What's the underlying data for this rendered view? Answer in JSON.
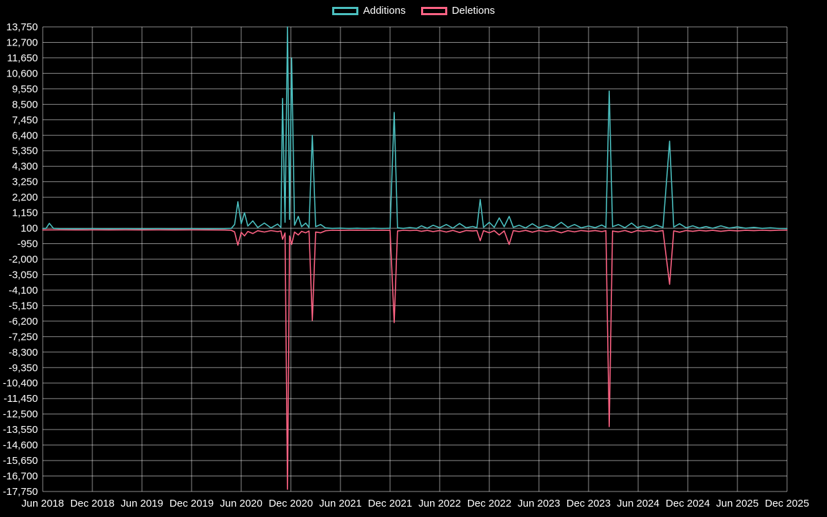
{
  "chart_data": {
    "type": "line",
    "title": "",
    "background_color": "#000000",
    "grid_color": "rgba(255,255,255,0.55)",
    "text_color": "#ffffff",
    "legend": {
      "position": "top",
      "items": [
        {
          "label": "Additions",
          "color": "#4bc0c0"
        },
        {
          "label": "Deletions",
          "color": "#ff6384"
        }
      ]
    },
    "x_axis": {
      "unit": "months since Jun 2018",
      "min": 0,
      "max": 90,
      "tick_positions": [
        0,
        6,
        12,
        18,
        24,
        30,
        36,
        42,
        48,
        54,
        60,
        66,
        72,
        78,
        84,
        90
      ],
      "tick_labels": [
        "Jun 2018",
        "Dec 2018",
        "Jun 2019",
        "Dec 2019",
        "Jun 2020",
        "Dec 2020",
        "Jun 2021",
        "Dec 2021",
        "Jun 2022",
        "Dec 2022",
        "Jun 2023",
        "Dec 2023",
        "Jun 2024",
        "Dec 2024",
        "Jun 2025",
        "Dec 2025"
      ],
      "grid": true
    },
    "y_axis": {
      "min": -17750,
      "max": 13750,
      "step": 1050,
      "grid": true
    },
    "series": [
      {
        "name": "Additions",
        "color": "#4bc0c0",
        "points": [
          [
            0,
            80
          ],
          [
            0.4,
            90
          ],
          [
            0.8,
            430
          ],
          [
            1.3,
            90
          ],
          [
            2,
            70
          ],
          [
            4,
            60
          ],
          [
            6,
            70
          ],
          [
            8,
            60
          ],
          [
            10,
            70
          ],
          [
            12,
            60
          ],
          [
            14,
            70
          ],
          [
            16,
            60
          ],
          [
            18,
            70
          ],
          [
            20,
            60
          ],
          [
            22,
            70
          ],
          [
            22.8,
            90
          ],
          [
            23.2,
            350
          ],
          [
            23.6,
            1900
          ],
          [
            24,
            400
          ],
          [
            24.4,
            1150
          ],
          [
            24.8,
            250
          ],
          [
            25.4,
            600
          ],
          [
            26,
            150
          ],
          [
            26.8,
            450
          ],
          [
            27.6,
            120
          ],
          [
            28.4,
            380
          ],
          [
            28.8,
            150
          ],
          [
            29,
            8900
          ],
          [
            29.3,
            500
          ],
          [
            29.6,
            13750
          ],
          [
            29.85,
            700
          ],
          [
            30.1,
            11650
          ],
          [
            30.45,
            300
          ],
          [
            30.9,
            900
          ],
          [
            31.3,
            200
          ],
          [
            31.8,
            450
          ],
          [
            32.2,
            150
          ],
          [
            32.6,
            6400
          ],
          [
            33,
            200
          ],
          [
            33.6,
            350
          ],
          [
            34.2,
            120
          ],
          [
            35,
            90
          ],
          [
            36,
            110
          ],
          [
            37,
            80
          ],
          [
            38,
            100
          ],
          [
            39,
            80
          ],
          [
            40,
            100
          ],
          [
            41,
            80
          ],
          [
            42,
            100
          ],
          [
            42.5,
            7950
          ],
          [
            42.9,
            130
          ],
          [
            43.6,
            90
          ],
          [
            44.4,
            150
          ],
          [
            45.2,
            90
          ],
          [
            45.8,
            260
          ],
          [
            46.5,
            100
          ],
          [
            47.2,
            300
          ],
          [
            48,
            130
          ],
          [
            48.8,
            350
          ],
          [
            49.6,
            110
          ],
          [
            50.4,
            420
          ],
          [
            51.2,
            130
          ],
          [
            52,
            220
          ],
          [
            52.5,
            130
          ],
          [
            52.9,
            2050
          ],
          [
            53.3,
            160
          ],
          [
            54,
            500
          ],
          [
            54.6,
            160
          ],
          [
            55.2,
            800
          ],
          [
            55.8,
            200
          ],
          [
            56.4,
            900
          ],
          [
            56.9,
            160
          ],
          [
            57.6,
            300
          ],
          [
            58.4,
            120
          ],
          [
            59.2,
            400
          ],
          [
            60,
            130
          ],
          [
            60.9,
            300
          ],
          [
            61.8,
            140
          ],
          [
            62.7,
            500
          ],
          [
            63.5,
            160
          ],
          [
            64.3,
            350
          ],
          [
            65.1,
            130
          ],
          [
            66,
            250
          ],
          [
            66.8,
            140
          ],
          [
            67.6,
            320
          ],
          [
            68.1,
            160
          ],
          [
            68.5,
            9400
          ],
          [
            68.9,
            200
          ],
          [
            69.6,
            350
          ],
          [
            70.4,
            130
          ],
          [
            71.2,
            450
          ],
          [
            71.9,
            140
          ],
          [
            72.6,
            260
          ],
          [
            73.4,
            130
          ],
          [
            74.2,
            320
          ],
          [
            75,
            150
          ],
          [
            75.8,
            6000
          ],
          [
            76.3,
            180
          ],
          [
            77,
            400
          ],
          [
            77.8,
            130
          ],
          [
            78.6,
            260
          ],
          [
            79.4,
            110
          ],
          [
            80.2,
            210
          ],
          [
            81,
            100
          ],
          [
            82,
            260
          ],
          [
            83,
            110
          ],
          [
            84,
            190
          ],
          [
            85,
            100
          ],
          [
            86,
            160
          ],
          [
            87,
            90
          ],
          [
            88,
            130
          ],
          [
            89,
            80
          ],
          [
            90,
            70
          ]
        ]
      },
      {
        "name": "Deletions",
        "color": "#ff6384",
        "points": [
          [
            0,
            -20
          ],
          [
            2,
            -15
          ],
          [
            4,
            -20
          ],
          [
            6,
            -15
          ],
          [
            8,
            -20
          ],
          [
            10,
            -15
          ],
          [
            12,
            -20
          ],
          [
            14,
            -15
          ],
          [
            16,
            -20
          ],
          [
            18,
            -15
          ],
          [
            20,
            -20
          ],
          [
            22,
            -25
          ],
          [
            22.8,
            -40
          ],
          [
            23.2,
            -150
          ],
          [
            23.6,
            -1050
          ],
          [
            24,
            -180
          ],
          [
            24.4,
            -420
          ],
          [
            24.8,
            -120
          ],
          [
            25.4,
            -260
          ],
          [
            26,
            -70
          ],
          [
            26.8,
            -160
          ],
          [
            27.6,
            -60
          ],
          [
            28.4,
            -130
          ],
          [
            28.8,
            -90
          ],
          [
            29,
            -650
          ],
          [
            29.3,
            -220
          ],
          [
            29.6,
            -17600
          ],
          [
            29.85,
            -420
          ],
          [
            30.1,
            -1000
          ],
          [
            30.45,
            -160
          ],
          [
            30.9,
            -360
          ],
          [
            31.3,
            -110
          ],
          [
            31.8,
            -210
          ],
          [
            32.2,
            -90
          ],
          [
            32.6,
            -6150
          ],
          [
            33,
            -160
          ],
          [
            33.6,
            -210
          ],
          [
            34.2,
            -70
          ],
          [
            35,
            -35
          ],
          [
            36,
            -45
          ],
          [
            38,
            -30
          ],
          [
            40,
            -40
          ],
          [
            42,
            -35
          ],
          [
            42.5,
            -6300
          ],
          [
            42.9,
            -90
          ],
          [
            43.6,
            -35
          ],
          [
            44.4,
            -60
          ],
          [
            45.2,
            -35
          ],
          [
            45.8,
            -110
          ],
          [
            46.5,
            -45
          ],
          [
            47.2,
            -130
          ],
          [
            48,
            -55
          ],
          [
            48.8,
            -160
          ],
          [
            49.6,
            -45
          ],
          [
            50.4,
            -190
          ],
          [
            51.2,
            -55
          ],
          [
            52,
            -90
          ],
          [
            52.5,
            -60
          ],
          [
            52.9,
            -750
          ],
          [
            53.3,
            -65
          ],
          [
            54,
            -210
          ],
          [
            54.6,
            -65
          ],
          [
            55.2,
            -360
          ],
          [
            55.8,
            -85
          ],
          [
            56.4,
            -1000
          ],
          [
            56.9,
            -65
          ],
          [
            57.6,
            -130
          ],
          [
            58.4,
            -45
          ],
          [
            59.2,
            -170
          ],
          [
            60,
            -55
          ],
          [
            60.9,
            -130
          ],
          [
            61.8,
            -55
          ],
          [
            62.7,
            -210
          ],
          [
            63.5,
            -65
          ],
          [
            64.3,
            -150
          ],
          [
            65.1,
            -55
          ],
          [
            66,
            -110
          ],
          [
            66.8,
            -55
          ],
          [
            67.6,
            -130
          ],
          [
            68.1,
            -65
          ],
          [
            68.5,
            -13350
          ],
          [
            68.9,
            -90
          ],
          [
            69.6,
            -150
          ],
          [
            70.4,
            -55
          ],
          [
            71.2,
            -190
          ],
          [
            71.9,
            -55
          ],
          [
            72.6,
            -110
          ],
          [
            73.4,
            -55
          ],
          [
            74.2,
            -130
          ],
          [
            75,
            -55
          ],
          [
            75.8,
            -3700
          ],
          [
            76.3,
            -80
          ],
          [
            77,
            -170
          ],
          [
            77.8,
            -55
          ],
          [
            78.6,
            -110
          ],
          [
            79.4,
            -45
          ],
          [
            80.2,
            -90
          ],
          [
            81,
            -40
          ],
          [
            82,
            -110
          ],
          [
            83,
            -45
          ],
          [
            84,
            -80
          ],
          [
            85,
            -40
          ],
          [
            86,
            -65
          ],
          [
            87,
            -35
          ],
          [
            88,
            -55
          ],
          [
            89,
            -35
          ],
          [
            90,
            -30
          ]
        ]
      }
    ]
  }
}
